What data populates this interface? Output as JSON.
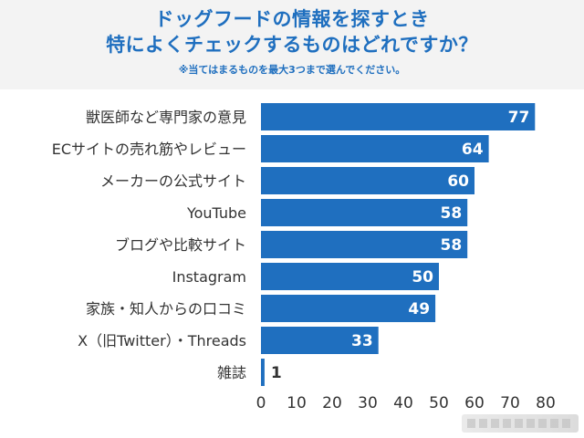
{
  "header": {
    "title_line1": "ドッグフードの情報を探すとき",
    "title_line2": "特によくチェックするものはどれですか？",
    "note": "※当てはまるものを最大3つまで選んでください。"
  },
  "colors": {
    "bar": "#1f6fbf",
    "title": "#1f6fbf",
    "header_bg": "#f3f3f3",
    "inside_label": "#ffffff",
    "outside_label": "#333333"
  },
  "chart_data": {
    "type": "bar",
    "orientation": "horizontal",
    "categories": [
      "獣医師など専門家の意見",
      "ECサイトの売れ筋やレビュー",
      "メーカーの公式サイト",
      "YouTube",
      "ブログや比較サイト",
      "Instagram",
      "家族・知人からの口コミ",
      "X（旧Twitter）・Threads",
      "雑誌"
    ],
    "values": [
      77,
      64,
      60,
      58,
      58,
      50,
      49,
      33,
      1
    ],
    "xlim": [
      0,
      80
    ],
    "xticks": [
      0,
      10,
      20,
      30,
      40,
      50,
      60,
      70,
      80
    ],
    "grid": false,
    "legend": "none"
  }
}
